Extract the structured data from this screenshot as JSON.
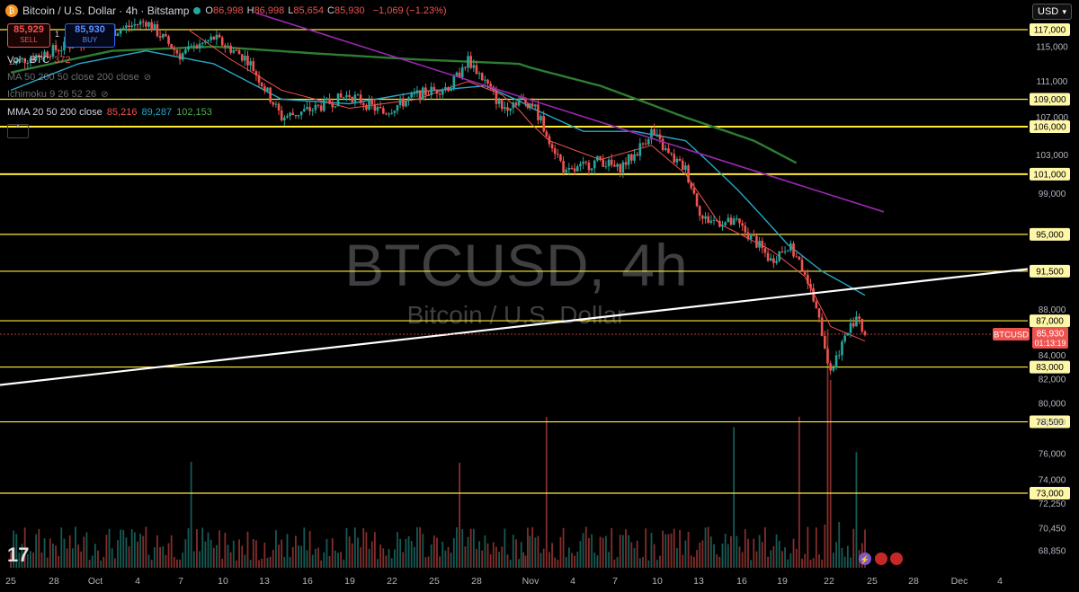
{
  "header": {
    "symbol_title": "Bitcoin / U.S. Dollar · 4h · Bitstamp",
    "ohlc": [
      {
        "k": "O",
        "v": "86,998"
      },
      {
        "k": "H",
        "v": "86,998"
      },
      {
        "k": "L",
        "v": "85,654"
      },
      {
        "k": "C",
        "v": "85,930"
      }
    ],
    "change": "−1,069 (−1.23%)",
    "sell_price": "85,929",
    "sell_label": "SELL",
    "spread": "1",
    "buy_price": "85,930",
    "buy_label": "BUY",
    "currency": "USD"
  },
  "indicators": {
    "vol_label": "Vol · BTC",
    "vol_value": "372",
    "ma_label": "MA 50 200 50 close 200 close",
    "ichimoku_label": "Ichimoku 9 26 52 26",
    "mma_label": "MMA 20 50 200 close",
    "mma_values": [
      "85,216",
      "89,287",
      "102,153"
    ]
  },
  "watermark": {
    "ticker": "BTCUSD, 4h",
    "name": "Bitcoin / U.S. Dollar"
  },
  "price_badge": {
    "symbol": "BTCUSD",
    "price": "85,930",
    "countdown": "01:13:19"
  },
  "colors": {
    "up": "#26a69a",
    "down": "#ef5350",
    "level_line": "#ffeb3b",
    "mma20": "#ef5350",
    "mma50": "#26a6c9",
    "mma200": "#2e7d32",
    "trendline_down": "#9c27b0",
    "trendline_up": "#ffffff"
  },
  "chart_data": {
    "type": "candlestick",
    "title": "Bitcoin / U.S. Dollar · 4h · Bitstamp",
    "y_scale": "log",
    "ylim": [
      67500,
      122000
    ],
    "y_tick_labels": [
      "115,000",
      "111,000",
      "107,000",
      "103,000",
      "99,000",
      "88,000",
      "84,000",
      "82,000",
      "80,000",
      "78,500",
      "76,000",
      "74,000",
      "72,250",
      "70,450",
      "68,850"
    ],
    "x_tick_labels": [
      "25",
      "28",
      "Oct",
      "4",
      "7",
      "10",
      "13",
      "16",
      "19",
      "22",
      "25",
      "28",
      "Nov",
      "4",
      "7",
      "10",
      "13",
      "16",
      "19",
      "22",
      "25",
      "28",
      "Dec",
      "4"
    ],
    "levels": [
      117000,
      109000,
      106000,
      101000,
      95000,
      91500,
      87000,
      83000,
      78500,
      73000
    ],
    "level_labels": [
      "117,000",
      "109,000",
      "106,000",
      "101,000",
      "95,000",
      "91,500",
      "87,000",
      "83,000",
      "78,500",
      "73,000"
    ],
    "series_anchors": {
      "price_close": [
        [
          0,
          113000
        ],
        [
          8,
          118000
        ],
        [
          10,
          114000
        ],
        [
          12,
          116000
        ],
        [
          14,
          113500
        ],
        [
          16,
          107000
        ],
        [
          18,
          108000
        ],
        [
          20,
          109500
        ],
        [
          22,
          107500
        ],
        [
          24,
          109500
        ],
        [
          26,
          110500
        ],
        [
          27,
          113500
        ],
        [
          28,
          111000
        ],
        [
          29,
          108000
        ],
        [
          30,
          109000
        ],
        [
          31,
          108500
        ],
        [
          33,
          101000
        ],
        [
          35,
          102500
        ],
        [
          36,
          101500
        ],
        [
          37,
          103000
        ],
        [
          38,
          105500
        ],
        [
          39,
          103000
        ],
        [
          40,
          101500
        ],
        [
          41,
          96500
        ],
        [
          43,
          96000
        ],
        [
          44,
          94500
        ],
        [
          45,
          92500
        ],
        [
          46,
          94000
        ],
        [
          47,
          91500
        ],
        [
          48,
          86000
        ],
        [
          48.5,
          82500
        ],
        [
          49,
          84500
        ],
        [
          50,
          87500
        ],
        [
          50.5,
          86000
        ]
      ],
      "mma20": [
        [
          10.5,
          117000
        ],
        [
          13,
          113500
        ],
        [
          16,
          110000
        ],
        [
          20,
          108000
        ],
        [
          24,
          109000
        ],
        [
          27,
          111000
        ],
        [
          29,
          109500
        ],
        [
          32,
          104500
        ],
        [
          35,
          102500
        ],
        [
          38,
          104000
        ],
        [
          40,
          101000
        ],
        [
          42,
          96000
        ],
        [
          45,
          93500
        ],
        [
          47,
          91000
        ],
        [
          48.5,
          86500
        ],
        [
          50.5,
          85216
        ]
      ],
      "mma50": [
        [
          0,
          110000
        ],
        [
          4,
          113000
        ],
        [
          8,
          114500
        ],
        [
          12,
          113000
        ],
        [
          16,
          109000
        ],
        [
          20,
          108500
        ],
        [
          24,
          109800
        ],
        [
          28,
          110500
        ],
        [
          31,
          108000
        ],
        [
          34,
          105500
        ],
        [
          37,
          105500
        ],
        [
          40,
          104500
        ],
        [
          43,
          99500
        ],
        [
          46,
          94000
        ],
        [
          48,
          91500
        ],
        [
          50.5,
          89287
        ]
      ],
      "mma200": [
        [
          0,
          112000
        ],
        [
          6,
          114500
        ],
        [
          12,
          115000
        ],
        [
          18,
          114200
        ],
        [
          24,
          113500
        ],
        [
          30,
          113000
        ],
        [
          35,
          110500
        ],
        [
          40,
          107000
        ],
        [
          44,
          104500
        ],
        [
          46.5,
          102153
        ]
      ],
      "trend_down": [
        [
          14.5,
          119000
        ],
        [
          51.6,
          97200
        ]
      ],
      "trend_up": [
        [
          -0.5,
          81500
        ],
        [
          52,
          91700
        ]
      ]
    },
    "volume_spikes_days": [
      10.6,
      26.5,
      31.8,
      42.8,
      46.6,
      48.3,
      48.5,
      50
    ]
  }
}
